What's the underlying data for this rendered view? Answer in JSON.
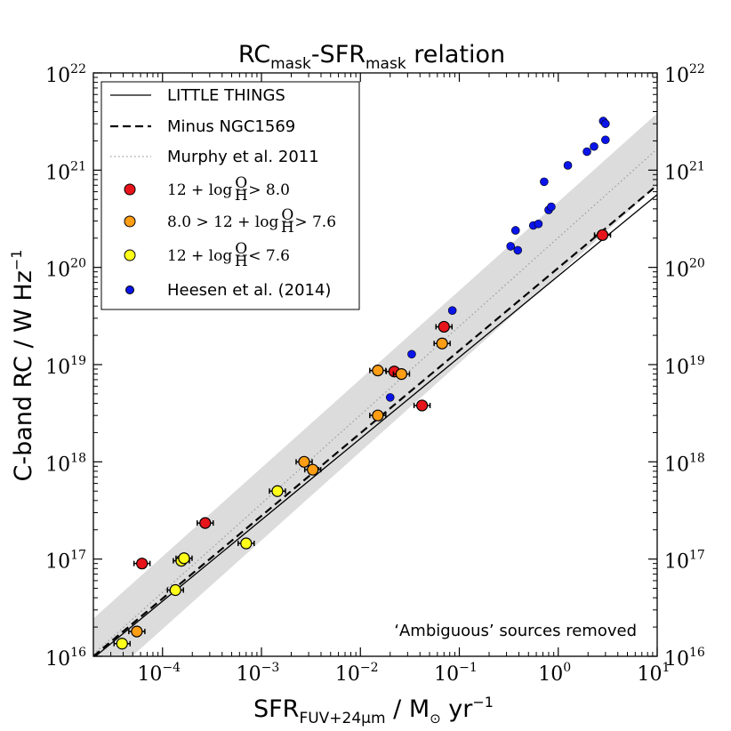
{
  "chart_data": {
    "type": "scatter",
    "title": {
      "main": "RC",
      "sub1": "mask",
      "mid": "-SFR",
      "sub2": "mask",
      "tail": " relation"
    },
    "xlabel": {
      "main": "SFR",
      "sub": "FUV+24μm",
      "rest": "  /  M",
      "sun": "⊙",
      "unit": " yr",
      "exp": "−1"
    },
    "ylabel": {
      "main": "C-band RC  /  W Hz",
      "exp": "−1"
    },
    "x_scale": "log",
    "y_scale": "log",
    "xlim": [
      2e-05,
      10
    ],
    "ylim": [
      1e+16,
      1e+22
    ],
    "x_ticks": [
      {
        "value": 0.0001,
        "base": "10",
        "exp": "−4"
      },
      {
        "value": 0.001,
        "base": "10",
        "exp": "−3"
      },
      {
        "value": 0.01,
        "base": "10",
        "exp": "−2"
      },
      {
        "value": 0.1,
        "base": "10",
        "exp": "−1"
      },
      {
        "value": 1,
        "base": "10",
        "exp": "0"
      },
      {
        "value": 10,
        "base": "10",
        "exp": "1"
      }
    ],
    "y_ticks": [
      {
        "value": 1e+16,
        "base": "10",
        "exp": "16"
      },
      {
        "value": 1e+17,
        "base": "10",
        "exp": "17"
      },
      {
        "value": 1e+18,
        "base": "10",
        "exp": "18"
      },
      {
        "value": 1e+19,
        "base": "10",
        "exp": "19"
      },
      {
        "value": 1e+20,
        "base": "10",
        "exp": "20"
      },
      {
        "value": 1e+21,
        "base": "10",
        "exp": "21"
      },
      {
        "value": 1e+22,
        "base": "10",
        "exp": "22"
      }
    ],
    "grid": false,
    "legend_position": "top-left",
    "lines": [
      {
        "name": "LITTLE THINGS",
        "style": "solid",
        "x": [
          2e-05,
          10
        ],
        "y": [
          9600000000000000.0,
          5.6e+20
        ]
      },
      {
        "name": "Minus NGC1569",
        "style": "dashed",
        "x": [
          2e-05,
          10
        ],
        "y": [
          1e+16,
          7e+20
        ]
      },
      {
        "name": "Murphy et al. 2011",
        "style": "dotted",
        "x": [
          2e-05,
          10
        ],
        "y": [
          1.05e+16,
          1.65e+21
        ],
        "band_lower": [
          4400000000000000.0,
          6.9e+20
        ],
        "band_upper": [
          2.45e+16,
          3.85e+21
        ]
      }
    ],
    "series": [
      {
        "name": "12 + log O/H > 8.0",
        "color": "#e8141b",
        "has_error_bars": true,
        "points": [
          {
            "x": 6.2e-05,
            "y": 9e+16
          },
          {
            "x": 0.00027,
            "y": 2.35e+17
          },
          {
            "x": 0.022,
            "y": 8.5e+18
          },
          {
            "x": 0.042,
            "y": 3.8e+18
          },
          {
            "x": 0.07,
            "y": 2.45e+19
          },
          {
            "x": 2.8,
            "y": 2.15e+20
          }
        ]
      },
      {
        "name": "8.0 > 12 + log O/H > 7.6",
        "color": "#ff9d14",
        "has_error_bars": true,
        "points": [
          {
            "x": 5.5e-05,
            "y": 1.8e+16
          },
          {
            "x": 0.0027,
            "y": 1e+18
          },
          {
            "x": 0.0033,
            "y": 8.3e+17
          },
          {
            "x": 0.015,
            "y": 8.7e+18
          },
          {
            "x": 0.015,
            "y": 3e+18
          },
          {
            "x": 0.026,
            "y": 8e+18
          },
          {
            "x": 0.067,
            "y": 1.65e+19
          }
        ]
      },
      {
        "name": "12 + log O/H < 7.6",
        "color": "#ffff1a",
        "has_error_bars": true,
        "points": [
          {
            "x": 3.9e-05,
            "y": 1.35e+16
          },
          {
            "x": 0.000135,
            "y": 4.8e+16
          },
          {
            "x": 0.000155,
            "y": 9.6e+16
          },
          {
            "x": 0.000165,
            "y": 1.02e+17
          },
          {
            "x": 0.0007,
            "y": 1.45e+17
          },
          {
            "x": 0.00145,
            "y": 5e+17
          }
        ]
      },
      {
        "name": "Heesen et al. (2014)",
        "color": "#0a14e8",
        "has_error_bars": false,
        "points": [
          {
            "x": 0.02,
            "y": 4.6e+18
          },
          {
            "x": 0.033,
            "y": 1.28e+19
          },
          {
            "x": 0.085,
            "y": 3.6e+19
          },
          {
            "x": 0.33,
            "y": 1.65e+20
          },
          {
            "x": 0.37,
            "y": 2.4e+20
          },
          {
            "x": 0.39,
            "y": 1.5e+20
          },
          {
            "x": 0.56,
            "y": 2.7e+20
          },
          {
            "x": 0.63,
            "y": 2.8e+20
          },
          {
            "x": 0.72,
            "y": 7.6e+20
          },
          {
            "x": 0.8,
            "y": 3.9e+20
          },
          {
            "x": 0.85,
            "y": 4.2e+20
          },
          {
            "x": 1.25,
            "y": 1.12e+21
          },
          {
            "x": 1.95,
            "y": 1.55e+21
          },
          {
            "x": 2.3,
            "y": 1.75e+21
          },
          {
            "x": 2.85,
            "y": 3.2e+21
          },
          {
            "x": 3.0,
            "y": 3e+21
          },
          {
            "x": 3.0,
            "y": 2.05e+21
          }
        ]
      }
    ],
    "legend": [
      {
        "key": "solid",
        "label": "LITTLE THINGS"
      },
      {
        "key": "dashed",
        "label": "Minus NGC1569"
      },
      {
        "key": "dotted",
        "label": "Murphy et al. 2011"
      },
      {
        "key": "red",
        "label": "12 + log",
        "frac_num": "O",
        "frac_den": "H",
        "tail": " > 8.0"
      },
      {
        "key": "orange",
        "label": "8.0 > 12 + log",
        "frac_num": "O",
        "frac_den": "H",
        "tail": " > 7.6"
      },
      {
        "key": "yellow",
        "label": "12 + log",
        "frac_num": "O",
        "frac_den": "H",
        "tail": " < 7.6"
      },
      {
        "key": "blue",
        "label": "Heesen et al. (2014)"
      }
    ],
    "annotation": "‘Ambiguous’ sources removed"
  }
}
